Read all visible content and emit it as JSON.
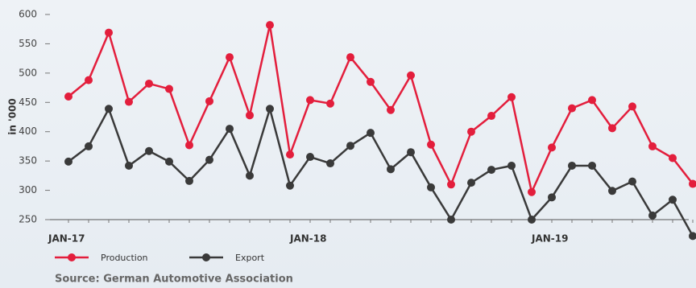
{
  "chart_data": {
    "type": "line",
    "y_label": "in '000",
    "source": "Source: German Automotive Association",
    "categories": [
      "JAN-17",
      null,
      null,
      null,
      null,
      null,
      null,
      null,
      null,
      null,
      null,
      null,
      "JAN-18",
      null,
      null,
      null,
      null,
      null,
      null,
      null,
      null,
      null,
      null,
      null,
      "JAN-19",
      null,
      null,
      null,
      null,
      null,
      null,
      null
    ],
    "series": [
      {
        "name": "Production",
        "color": "#e31e3c",
        "values": [
          460,
          488,
          569,
          451,
          482,
          473,
          377,
          452,
          527,
          428,
          582,
          361,
          454,
          448,
          527,
          485,
          437,
          496,
          378,
          310,
          400,
          427,
          459,
          297,
          373,
          440,
          454,
          406,
          443,
          375,
          355,
          311
        ]
      },
      {
        "name": "Export",
        "color": "#3a3a3a",
        "values": [
          349,
          375,
          439,
          342,
          367,
          349,
          316,
          352,
          405,
          325,
          439,
          308,
          357,
          346,
          376,
          398,
          336,
          365,
          305,
          250,
          313,
          335,
          342,
          250,
          288,
          342,
          342,
          299,
          315,
          257,
          284,
          222
        ]
      }
    ],
    "ylim": [
      250,
      600
    ],
    "yticks": [
      250,
      300,
      350,
      400,
      450,
      500,
      550,
      600
    ],
    "grid": false,
    "legend": "bottom-left"
  }
}
